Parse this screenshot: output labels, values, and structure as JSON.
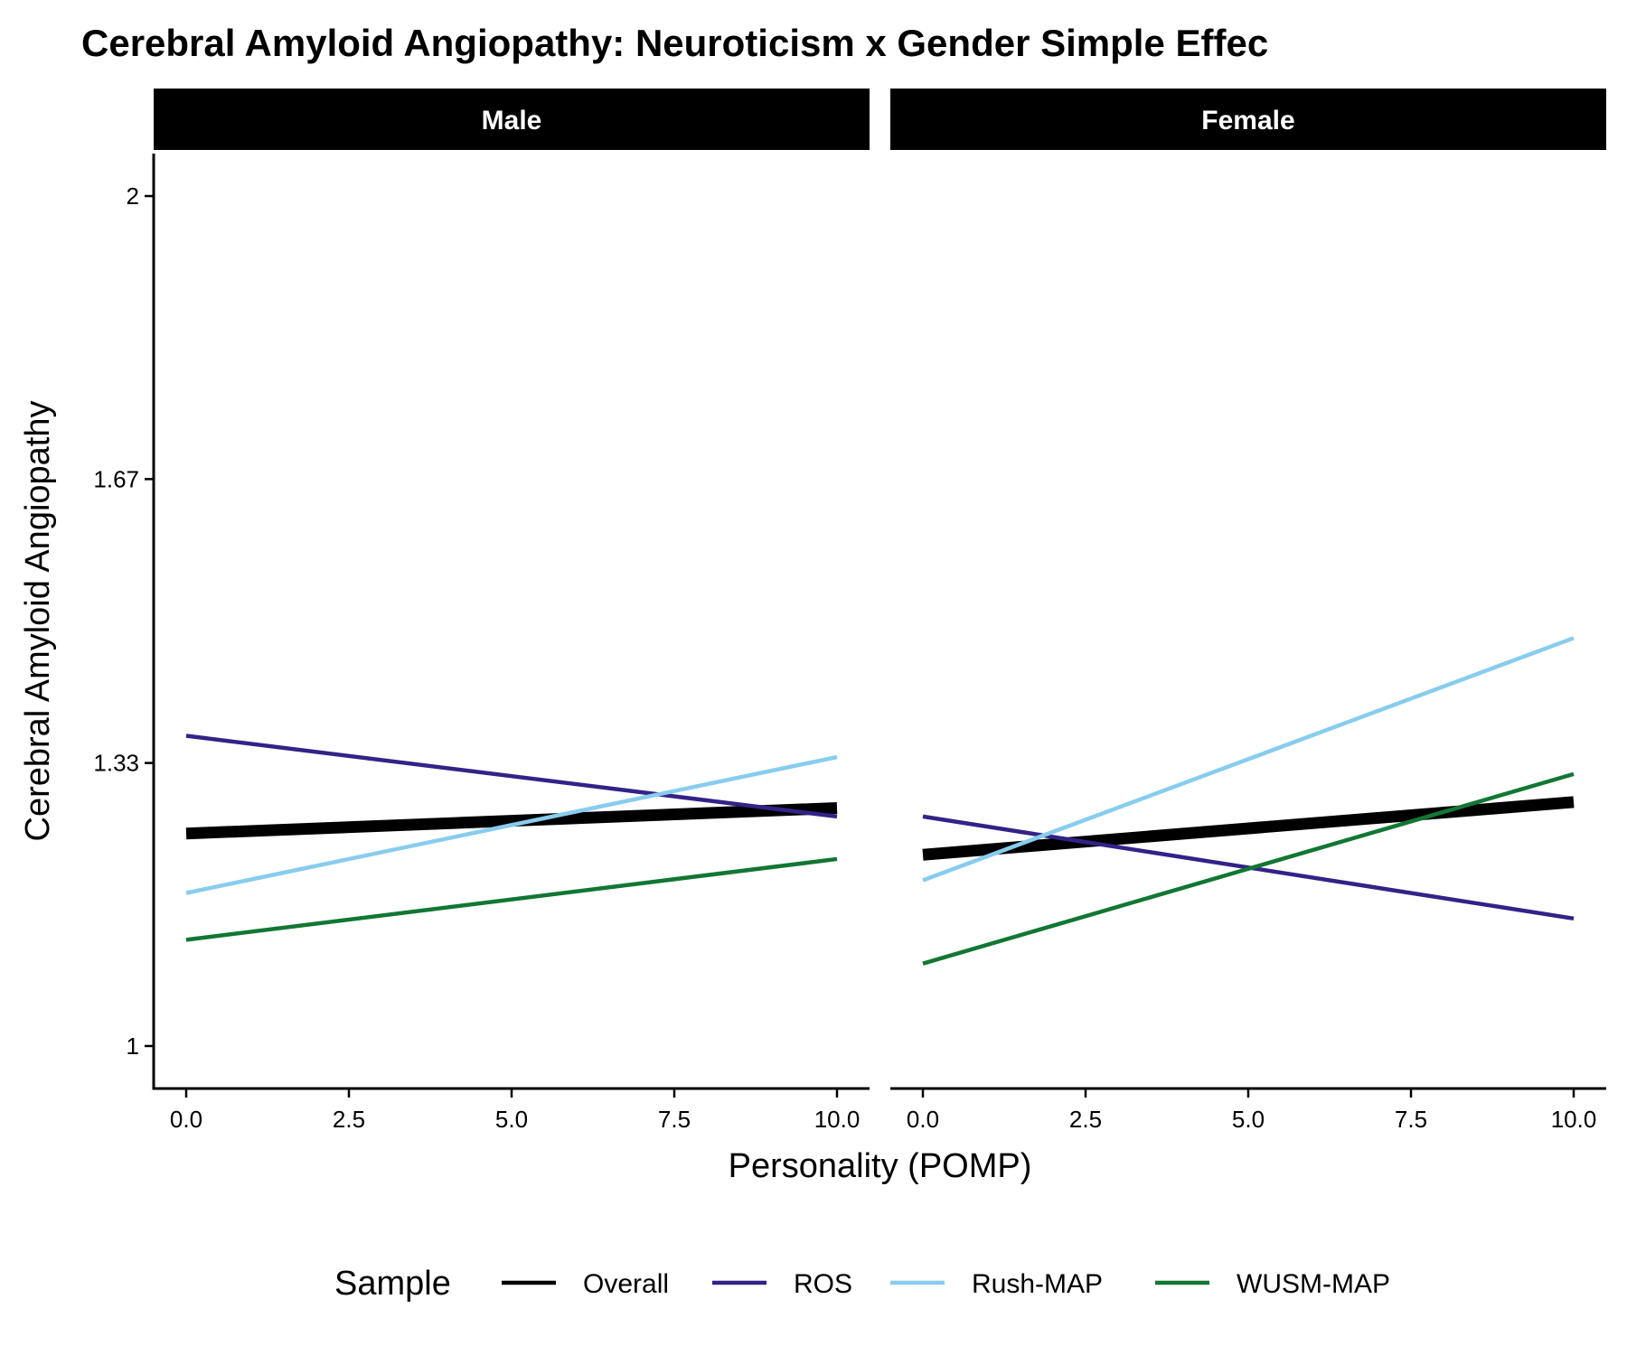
{
  "chart_data": {
    "type": "line",
    "title": "Cerebral Amyloid Angiopathy: Neuroticism x Gender Simple Effec",
    "xlabel": "Personality (POMP)",
    "ylabel": "Cerebral Amyloid Angiopathy",
    "xlim": [
      0,
      10
    ],
    "ylim": [
      0.95,
      2.05
    ],
    "x_ticks": [
      "0.0",
      "2.5",
      "5.0",
      "7.5",
      "10.0"
    ],
    "x_tick_values": [
      0,
      2.5,
      5,
      7.5,
      10
    ],
    "y_ticks": [
      "1",
      "1.33",
      "1.67",
      "2"
    ],
    "y_tick_values": [
      1,
      1.333,
      1.667,
      2
    ],
    "grid": false,
    "legend": {
      "title": "Sample",
      "position": "bottom",
      "entries": [
        "Overall",
        "ROS",
        "Rush-MAP",
        "WUSM-MAP"
      ]
    },
    "colors": {
      "Overall": "#000000",
      "ROS": "#332288",
      "Rush-MAP": "#88CCEE",
      "WUSM-MAP": "#117733"
    },
    "panels": [
      {
        "name": "Male",
        "series": [
          {
            "name": "Overall",
            "x": [
              0,
              10
            ],
            "y": [
              1.25,
              1.28
            ]
          },
          {
            "name": "ROS",
            "x": [
              0,
              10
            ],
            "y": [
              1.365,
              1.27
            ]
          },
          {
            "name": "Rush-MAP",
            "x": [
              0,
              10
            ],
            "y": [
              1.18,
              1.34
            ]
          },
          {
            "name": "WUSM-MAP",
            "x": [
              0,
              10
            ],
            "y": [
              1.125,
              1.22
            ]
          }
        ]
      },
      {
        "name": "Female",
        "series": [
          {
            "name": "Overall",
            "x": [
              0,
              10
            ],
            "y": [
              1.225,
              1.287
            ]
          },
          {
            "name": "ROS",
            "x": [
              0,
              10
            ],
            "y": [
              1.27,
              1.15
            ]
          },
          {
            "name": "Rush-MAP",
            "x": [
              0,
              10
            ],
            "y": [
              1.195,
              1.48
            ]
          },
          {
            "name": "WUSM-MAP",
            "x": [
              0,
              10
            ],
            "y": [
              1.097,
              1.32
            ]
          }
        ]
      }
    ]
  }
}
